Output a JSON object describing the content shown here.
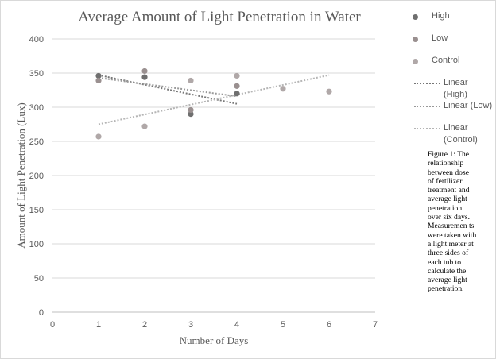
{
  "chart_data": {
    "type": "scatter",
    "title": "Average Amount of Light Penetration in Water",
    "xlabel": "Number of Days",
    "ylabel": "Amount of Light Penetration (Lux)",
    "xlim": [
      0,
      7
    ],
    "ylim": [
      0,
      400
    ],
    "xticks": [
      "0",
      "1",
      "2",
      "3",
      "4",
      "5",
      "6",
      "7"
    ],
    "yticks": [
      "0",
      "50",
      "100",
      "150",
      "200",
      "250",
      "300",
      "350",
      "400"
    ],
    "grid": "horizontal",
    "legend_position": "right",
    "series": [
      {
        "name": "High",
        "color": "#6f6f6f",
        "points": [
          [
            1,
            346
          ],
          [
            2,
            344
          ],
          [
            3,
            290
          ],
          [
            4,
            320
          ]
        ],
        "trendline": {
          "name": "Linear (High)",
          "from": [
            1,
            347
          ],
          "to": [
            4,
            305
          ]
        }
      },
      {
        "name": "Low",
        "color": "#9a9090",
        "points": [
          [
            1,
            339
          ],
          [
            2,
            353
          ],
          [
            3,
            296
          ],
          [
            4,
            331
          ]
        ],
        "trendline": {
          "name": "Linear (Low)",
          "from": [
            1,
            343
          ],
          "to": [
            4,
            316
          ]
        }
      },
      {
        "name": "Control",
        "color": "#b0a8a8",
        "points": [
          [
            1,
            257
          ],
          [
            2,
            272
          ],
          [
            3,
            339
          ],
          [
            4,
            346
          ],
          [
            5,
            327
          ],
          [
            6,
            323
          ]
        ],
        "trendline": {
          "name": "Linear (Control)",
          "from": [
            1,
            275
          ],
          "to": [
            6,
            347
          ]
        }
      }
    ]
  },
  "legend": {
    "high": "High",
    "low": "Low",
    "control": "Control",
    "linear_high_line1": "Linear",
    "linear_high_line2": "(High)",
    "linear_low": "Linear (Low)",
    "linear_control_line1": "Linear",
    "linear_control_line2": "(Control)"
  },
  "caption": "Figure 1: The relationship between dose of fertilizer treatment and average light penetration over six days. Measuremen ts were taken with a light meter at three sides of each tub to calculate the average light penetration."
}
